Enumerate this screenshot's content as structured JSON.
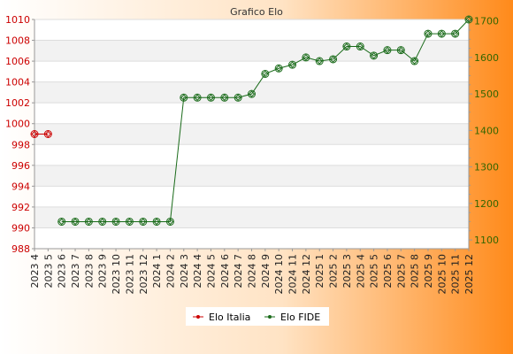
{
  "chart_data": {
    "type": "line",
    "title": "Grafico Elo",
    "categories": [
      "2023 4",
      "2023 5",
      "2023 6",
      "2023 7",
      "2023 8",
      "2023 9",
      "2023 10",
      "2023 11",
      "2023 12",
      "2024 1",
      "2024 2",
      "2024 3",
      "2024 4",
      "2024 5",
      "2024 6",
      "2024 7",
      "2024 8",
      "2024 9",
      "2024 10",
      "2024 11",
      "2024 12",
      "2025 1",
      "2025 2",
      "2025 3",
      "2025 4",
      "2025 5",
      "2025 6",
      "2025 7",
      "2025 8",
      "2025 9",
      "2025 10",
      "2025 11",
      "2025 12"
    ],
    "y_left": {
      "ticks": [
        988,
        990,
        992,
        994,
        996,
        998,
        1000,
        1002,
        1004,
        1006,
        1008,
        1010
      ],
      "range": [
        988,
        1010
      ],
      "color": "#cc0000"
    },
    "y_right": {
      "ticks": [
        1100,
        1200,
        1300,
        1400,
        1500,
        1600,
        1700
      ],
      "range": [
        1076,
        1704
      ],
      "color": "#336600"
    },
    "series": [
      {
        "name": "Elo Italia",
        "axis": "left",
        "color": "#cc0000",
        "values": [
          999,
          999,
          null,
          null,
          null,
          null,
          null,
          null,
          null,
          null,
          null,
          null,
          null,
          null,
          null,
          null,
          null,
          null,
          null,
          null,
          null,
          null,
          null,
          null,
          null,
          null,
          null,
          null,
          null,
          null,
          null,
          null,
          null
        ]
      },
      {
        "name": "Elo FIDE",
        "axis": "right",
        "color": "#1a6b1a",
        "values": [
          null,
          null,
          1150,
          1150,
          1150,
          1150,
          1150,
          1150,
          1150,
          1150,
          1150,
          1490,
          1490,
          1490,
          1490,
          1490,
          1500,
          1555,
          1570,
          1580,
          1600,
          1590,
          1595,
          1630,
          1630,
          1605,
          1620,
          1620,
          1590,
          1665,
          1665,
          1665,
          1704
        ]
      }
    ],
    "legend_position": "bottom",
    "grid": true
  }
}
